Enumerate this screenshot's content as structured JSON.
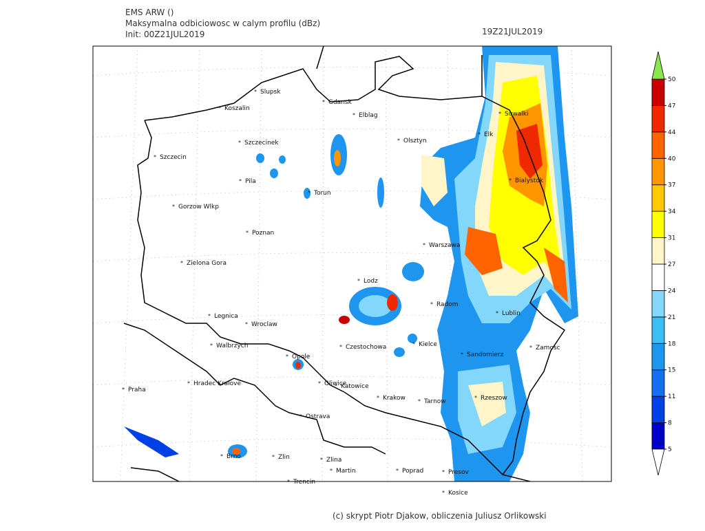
{
  "header": {
    "model": "EMS ARW ()",
    "field": "Maksymalna odbiciowosc w calym profilu (dBz)",
    "init": "Init: 00Z21JUL2019",
    "valid": "19Z21JUL2019"
  },
  "cities": [
    "Slupsk",
    "Koszalin",
    "Gdansk",
    "Elblag",
    "Szczecinek",
    "Olsztyn",
    "Suwalki",
    "Elk",
    "Szczecin",
    "Bialystok",
    "Pila",
    "Torun",
    "Gorzow Wlkp",
    "Poznan",
    "Warszawa",
    "Zielona Gora",
    "Lodz",
    "Radom",
    "Lublin",
    "Legnica",
    "Wroclaw",
    "Walbrzych",
    "Czestochowa",
    "Kielce",
    "Opole",
    "Sandomierz",
    "Zamosc",
    "Praha",
    "Hradec Kralove",
    "Gliwice",
    "Katowice",
    "Krakow",
    "Tarnow",
    "Rzeszow",
    "Ostrava",
    "Brno",
    "Zlin",
    "Zlina",
    "Martin",
    "Poprad",
    "Presov",
    "Trencin",
    "Kosice"
  ],
  "colorbar": {
    "levels": [
      5,
      8,
      11,
      15,
      18,
      21,
      24,
      27,
      31,
      34,
      37,
      40,
      44,
      47,
      50
    ],
    "colors": [
      "#0000c8",
      "#0040e6",
      "#1470f0",
      "#1e96f0",
      "#3cbef5",
      "#82d7fa",
      "#ffffff",
      "#fff5c8",
      "#ffff00",
      "#ffc800",
      "#ff9600",
      "#ff6400",
      "#f02800",
      "#c80000"
    ],
    "under_color": "#ffffff",
    "over_color": "#8ce650"
  },
  "credit": "(c) skrypt Piotr Djakow, obliczenia Juliusz Orlikowski"
}
